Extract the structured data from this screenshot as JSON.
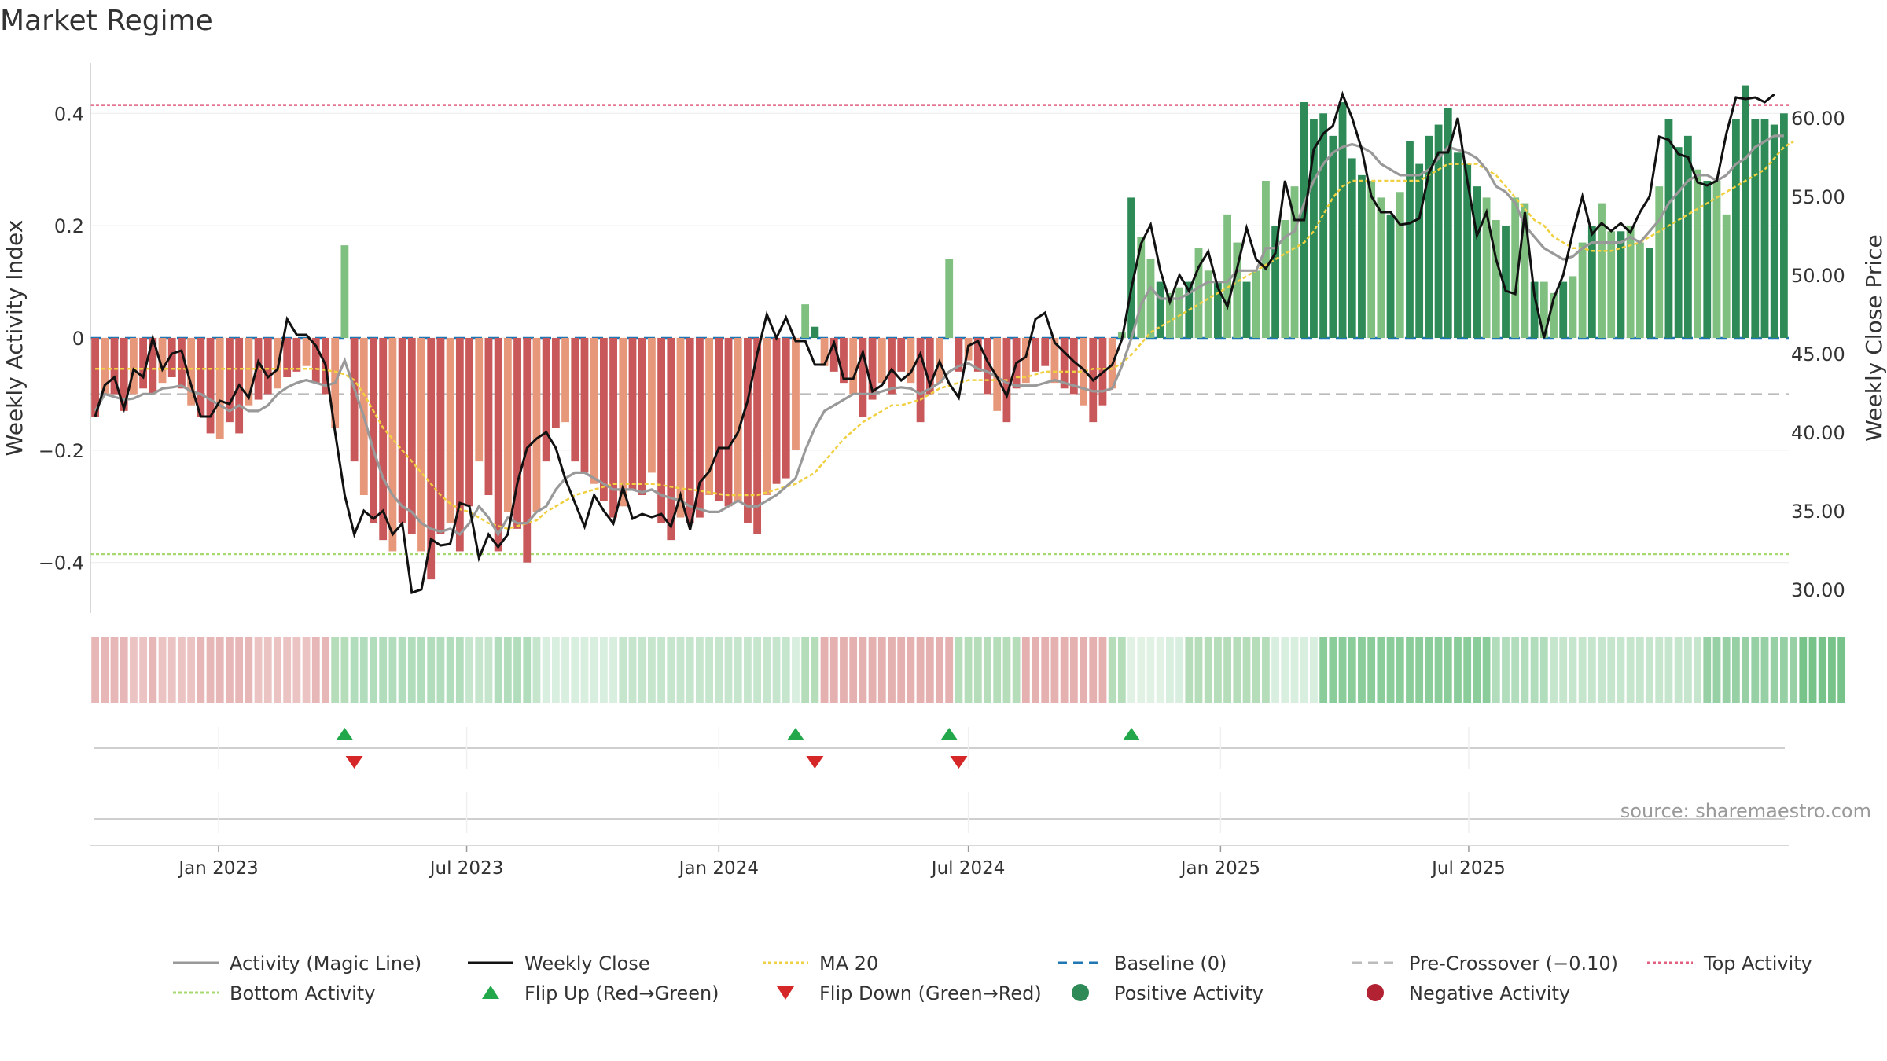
{
  "title": "Market Regime",
  "source": "source: sharemaestro.com",
  "colors": {
    "red_dark": "#c9585a",
    "red_light": "#e7977a",
    "green_dark": "#2e8b57",
    "green_light": "#7fbf7f",
    "magic_line": "#999999",
    "close": "#111111",
    "ma20": "#f0d040",
    "baseline": "#1f77b4",
    "pre_crossover": "#bbbbbb",
    "top": "#e06080",
    "bottom": "#a8d870",
    "flip_up": "#22a84a",
    "flip_down": "#d62728"
  },
  "legend": [
    {
      "label": "Activity (Magic Line)",
      "kind": "line",
      "color": "#999999",
      "dash": ""
    },
    {
      "label": "Weekly Close",
      "kind": "line",
      "color": "#111111",
      "dash": ""
    },
    {
      "label": "MA 20",
      "kind": "line",
      "color": "#f0d040",
      "dash": "4 3"
    },
    {
      "label": "Baseline (0)",
      "kind": "line",
      "color": "#1f77b4",
      "dash": "12 8"
    },
    {
      "label": "Pre-Crossover (−0.10)",
      "kind": "line",
      "color": "#bbbbbb",
      "dash": "12 8"
    },
    {
      "label": "Top Activity",
      "kind": "line",
      "color": "#e06080",
      "dash": "4 3"
    },
    {
      "label": "Bottom Activity",
      "kind": "line",
      "color": "#a8d870",
      "dash": "4 3"
    },
    {
      "label": "Flip Up (Red→Green)",
      "kind": "tri-up",
      "color": "#22a84a"
    },
    {
      "label": "Flip Down (Green→Red)",
      "kind": "tri-down",
      "color": "#d62728"
    },
    {
      "label": "Positive Activity",
      "kind": "dot",
      "color": "#2e8b57"
    },
    {
      "label": "Negative Activity",
      "kind": "dot",
      "color": "#b22233"
    }
  ],
  "chart_data": {
    "type": "bar",
    "x_start": "2022-10-03",
    "x_step": "weekly",
    "x_ticks": [
      {
        "date": "2023-01-01",
        "label": "Jan 2023"
      },
      {
        "date": "2023-07-01",
        "label": "Jul 2023"
      },
      {
        "date": "2024-01-01",
        "label": "Jan 2024"
      },
      {
        "date": "2024-07-01",
        "label": "Jul 2024"
      },
      {
        "date": "2025-01-01",
        "label": "Jan 2025"
      },
      {
        "date": "2025-07-01",
        "label": "Jul 2025"
      }
    ],
    "ylabel_left": "Weekly Activity Index",
    "ylabel_right": "Weekly Close Price",
    "ylim_left": [
      -0.49,
      0.49
    ],
    "ylim_right": [
      28.5,
      63.5
    ],
    "yticks_left": [
      {
        "v": 0.4,
        "label": "0.4"
      },
      {
        "v": 0.2,
        "label": "0.2"
      },
      {
        "v": 0,
        "label": "0"
      },
      {
        "v": -0.2,
        "label": "−0.2"
      },
      {
        "v": -0.4,
        "label": "−0.4"
      }
    ],
    "yticks_right": [
      {
        "v": 60,
        "label": "60.00"
      },
      {
        "v": 55,
        "label": "55.00"
      },
      {
        "v": 50,
        "label": "50.00"
      },
      {
        "v": 45,
        "label": "45.00"
      },
      {
        "v": 40,
        "label": "40.00"
      },
      {
        "v": 35,
        "label": "35.00"
      },
      {
        "v": 30,
        "label": "30.00"
      }
    ],
    "reference_lines": {
      "baseline": 0,
      "pre_crossover": -0.1,
      "top": 0.415,
      "bottom": -0.385
    },
    "activity": [
      -0.14,
      -0.1,
      -0.1,
      -0.13,
      -0.1,
      -0.09,
      -0.1,
      -0.08,
      -0.07,
      -0.09,
      -0.12,
      -0.14,
      -0.17,
      -0.18,
      -0.15,
      -0.17,
      -0.12,
      -0.11,
      -0.1,
      -0.09,
      -0.07,
      -0.06,
      -0.05,
      -0.08,
      -0.1,
      -0.16,
      0.165,
      -0.22,
      -0.28,
      -0.33,
      -0.36,
      -0.38,
      -0.33,
      -0.35,
      -0.38,
      -0.43,
      -0.35,
      -0.33,
      -0.38,
      -0.3,
      -0.22,
      -0.28,
      -0.38,
      -0.31,
      -0.34,
      -0.4,
      -0.31,
      -0.22,
      -0.16,
      -0.15,
      -0.22,
      -0.24,
      -0.26,
      -0.29,
      -0.32,
      -0.3,
      -0.27,
      -0.28,
      -0.24,
      -0.33,
      -0.36,
      -0.32,
      -0.33,
      -0.32,
      -0.28,
      -0.29,
      -0.3,
      -0.29,
      -0.33,
      -0.35,
      -0.28,
      -0.26,
      -0.25,
      -0.2,
      0.06,
      0.02,
      -0.05,
      -0.06,
      -0.08,
      -0.1,
      -0.14,
      -0.11,
      -0.08,
      -0.1,
      -0.06,
      -0.08,
      -0.15,
      -0.1,
      -0.08,
      0.14,
      -0.06,
      -0.04,
      -0.06,
      -0.1,
      -0.13,
      -0.15,
      -0.09,
      -0.08,
      -0.06,
      -0.05,
      -0.08,
      -0.09,
      -0.1,
      -0.12,
      -0.15,
      -0.12,
      -0.09,
      0.01,
      0.25,
      0.18,
      0.14,
      0.1,
      0.08,
      0.09,
      0.1,
      0.16,
      0.12,
      0.1,
      0.22,
      0.17,
      0.1,
      0.12,
      0.28,
      0.2,
      0.21,
      0.27,
      0.42,
      0.39,
      0.4,
      0.36,
      0.42,
      0.32,
      0.29,
      0.28,
      0.25,
      0.22,
      0.26,
      0.35,
      0.31,
      0.36,
      0.38,
      0.41,
      0.33,
      0.31,
      0.27,
      0.25,
      0.21,
      0.2,
      0.25,
      0.24,
      0.1,
      0.1,
      0.08,
      0.1,
      0.11,
      0.17,
      0.2,
      0.24,
      0.19,
      0.19,
      0.2,
      0.17,
      0.16,
      0.27,
      0.39,
      0.34,
      0.36,
      0.3,
      0.28,
      0.28,
      0.22,
      0.39,
      0.45,
      0.39,
      0.39,
      0.38,
      0.4
    ],
    "close": [
      41,
      43,
      43.5,
      41.5,
      44,
      43.5,
      46,
      44,
      45,
      45.2,
      43,
      41,
      41,
      42,
      41.8,
      43,
      42.2,
      44.5,
      43.5,
      44,
      47.2,
      46.2,
      46.2,
      45.5,
      44.3,
      40,
      36,
      33.5,
      35,
      34.5,
      35,
      33.5,
      34.2,
      29.8,
      30,
      33.2,
      32.8,
      32.9,
      35.5,
      35.3,
      32,
      33.5,
      32.7,
      33.5,
      36.8,
      39,
      39.6,
      40,
      39,
      37,
      35.5,
      34,
      36,
      35,
      34.2,
      36.5,
      34.5,
      34.8,
      34.6,
      34.8,
      34,
      36,
      33.8,
      36.8,
      37.5,
      39,
      39,
      40,
      42,
      45,
      47.5,
      46,
      47.3,
      45.8,
      45.8,
      44.3,
      44.3,
      45.7,
      43.4,
      43.4,
      45.1,
      42.6,
      43,
      44,
      43.3,
      43.8,
      45,
      43,
      44.5,
      43.1,
      42.2,
      45.5,
      45.8,
      44.5,
      43.5,
      42.3,
      44.4,
      44.8,
      47.2,
      47.6,
      45.7,
      45.1,
      44.5,
      44,
      43.3,
      43.8,
      44.3,
      45.9,
      49.2,
      52,
      53.2,
      50.3,
      48.3,
      50,
      49,
      50.5,
      51.5,
      49.2,
      48,
      50.4,
      53,
      51,
      50.4,
      51.4,
      56,
      53.5,
      53.5,
      58,
      59,
      59.5,
      61.5,
      60,
      58,
      55,
      54,
      54,
      53.2,
      53.3,
      53.6,
      56.5,
      57.8,
      57.8,
      60,
      56,
      52.5,
      54,
      51,
      49,
      48.8,
      54,
      48.7,
      46,
      48.5,
      50,
      52.7,
      55,
      52.6,
      53.3,
      52.8,
      53.3,
      52.7,
      54,
      55,
      58.8,
      58.6,
      57.7,
      57.5,
      55.9,
      55.7,
      56,
      59,
      61.3,
      61.2,
      61.3,
      61,
      61.5
    ],
    "magic_line": [
      -0.13,
      -0.1,
      -0.105,
      -0.11,
      -0.108,
      -0.1,
      -0.1,
      -0.09,
      -0.088,
      -0.085,
      -0.095,
      -0.1,
      -0.11,
      -0.12,
      -0.13,
      -0.12,
      -0.13,
      -0.13,
      -0.12,
      -0.1,
      -0.088,
      -0.08,
      -0.075,
      -0.08,
      -0.085,
      -0.08,
      -0.04,
      -0.09,
      -0.14,
      -0.2,
      -0.25,
      -0.28,
      -0.3,
      -0.31,
      -0.33,
      -0.34,
      -0.345,
      -0.34,
      -0.35,
      -0.33,
      -0.3,
      -0.32,
      -0.35,
      -0.32,
      -0.33,
      -0.33,
      -0.31,
      -0.3,
      -0.27,
      -0.25,
      -0.24,
      -0.24,
      -0.25,
      -0.26,
      -0.27,
      -0.27,
      -0.27,
      -0.275,
      -0.27,
      -0.28,
      -0.285,
      -0.29,
      -0.3,
      -0.305,
      -0.31,
      -0.31,
      -0.3,
      -0.29,
      -0.3,
      -0.3,
      -0.29,
      -0.28,
      -0.265,
      -0.25,
      -0.2,
      -0.16,
      -0.13,
      -0.12,
      -0.11,
      -0.1,
      -0.1,
      -0.1,
      -0.095,
      -0.09,
      -0.088,
      -0.09,
      -0.1,
      -0.09,
      -0.08,
      -0.06,
      -0.05,
      -0.045,
      -0.055,
      -0.06,
      -0.07,
      -0.08,
      -0.085,
      -0.085,
      -0.085,
      -0.08,
      -0.075,
      -0.08,
      -0.085,
      -0.09,
      -0.095,
      -0.095,
      -0.09,
      -0.05,
      0,
      0.06,
      0.09,
      0.07,
      0.07,
      0.07,
      0.08,
      0.09,
      0.1,
      0.1,
      0.1,
      0.12,
      0.12,
      0.12,
      0.16,
      0.16,
      0.18,
      0.19,
      0.24,
      0.28,
      0.31,
      0.33,
      0.34,
      0.345,
      0.34,
      0.33,
      0.31,
      0.3,
      0.29,
      0.29,
      0.29,
      0.3,
      0.32,
      0.34,
      0.335,
      0.33,
      0.32,
      0.3,
      0.27,
      0.26,
      0.24,
      0.2,
      0.18,
      0.16,
      0.15,
      0.14,
      0.145,
      0.16,
      0.17,
      0.17,
      0.17,
      0.17,
      0.18,
      0.17,
      0.19,
      0.21,
      0.24,
      0.26,
      0.28,
      0.29,
      0.29,
      0.28,
      0.29,
      0.31,
      0.32,
      0.34,
      0.35,
      0.36,
      0.36
    ],
    "ma20": [
      -0.055,
      -0.055,
      -0.055,
      -0.055,
      -0.055,
      -0.055,
      -0.055,
      -0.055,
      -0.055,
      -0.055,
      -0.055,
      -0.055,
      -0.055,
      -0.055,
      -0.055,
      -0.055,
      -0.055,
      -0.055,
      -0.055,
      -0.055,
      -0.055,
      -0.055,
      -0.055,
      -0.055,
      -0.057,
      -0.06,
      -0.065,
      -0.075,
      -0.1,
      -0.13,
      -0.16,
      -0.18,
      -0.2,
      -0.22,
      -0.24,
      -0.26,
      -0.28,
      -0.295,
      -0.305,
      -0.31,
      -0.32,
      -0.33,
      -0.335,
      -0.34,
      -0.335,
      -0.33,
      -0.325,
      -0.31,
      -0.3,
      -0.29,
      -0.28,
      -0.275,
      -0.27,
      -0.265,
      -0.26,
      -0.26,
      -0.26,
      -0.26,
      -0.26,
      -0.262,
      -0.265,
      -0.268,
      -0.27,
      -0.272,
      -0.275,
      -0.278,
      -0.28,
      -0.28,
      -0.28,
      -0.28,
      -0.275,
      -0.27,
      -0.265,
      -0.26,
      -0.25,
      -0.24,
      -0.22,
      -0.2,
      -0.18,
      -0.165,
      -0.15,
      -0.14,
      -0.13,
      -0.12,
      -0.12,
      -0.115,
      -0.11,
      -0.1,
      -0.09,
      -0.085,
      -0.08,
      -0.075,
      -0.075,
      -0.075,
      -0.075,
      -0.075,
      -0.07,
      -0.07,
      -0.065,
      -0.06,
      -0.06,
      -0.06,
      -0.06,
      -0.06,
      -0.055,
      -0.055,
      -0.055,
      -0.045,
      -0.03,
      -0.01,
      0.01,
      0.02,
      0.03,
      0.04,
      0.05,
      0.06,
      0.07,
      0.08,
      0.09,
      0.1,
      0.11,
      0.12,
      0.13,
      0.14,
      0.15,
      0.16,
      0.17,
      0.19,
      0.22,
      0.25,
      0.27,
      0.28,
      0.28,
      0.28,
      0.28,
      0.28,
      0.28,
      0.28,
      0.28,
      0.29,
      0.3,
      0.31,
      0.31,
      0.31,
      0.31,
      0.3,
      0.29,
      0.27,
      0.25,
      0.23,
      0.21,
      0.2,
      0.18,
      0.17,
      0.16,
      0.16,
      0.155,
      0.155,
      0.155,
      0.16,
      0.165,
      0.17,
      0.18,
      0.19,
      0.2,
      0.21,
      0.22,
      0.23,
      0.24,
      0.25,
      0.26,
      0.27,
      0.28,
      0.29,
      0.3,
      0.32,
      0.34,
      0.35
    ],
    "flip_up_weeks": [
      26,
      73,
      89,
      108
    ],
    "flip_down_weeks": [
      27,
      75,
      90
    ],
    "regime_strip": [
      0.3,
      0.3,
      0.3,
      0.3,
      0.2,
      0.2,
      0.3,
      0.2,
      0.2,
      0.2,
      0.2,
      0.3,
      0.3,
      0.3,
      0.3,
      0.3,
      0.3,
      0.2,
      0.2,
      0.2,
      0.2,
      0.2,
      0.2,
      0.3,
      0.3,
      0.4,
      0.5,
      0.8,
      0.8,
      0.8,
      0.8,
      0.8,
      0.8,
      0.8,
      0.8,
      0.8,
      0.8,
      0.8,
      0.8,
      0.7,
      0.7,
      0.7,
      0.8,
      0.8,
      0.8,
      0.8,
      0.7,
      0.6,
      0.6,
      0.6,
      0.6,
      0.6,
      0.6,
      0.6,
      0.6,
      0.7,
      0.7,
      0.7,
      0.7,
      0.7,
      0.7,
      0.7,
      0.7,
      0.7,
      0.7,
      0.7,
      0.7,
      0.7,
      0.7,
      0.7,
      0.7,
      0.7,
      0.7,
      0.6,
      0.25,
      0.25,
      0.35,
      0.35,
      0.35,
      0.35,
      0.35,
      0.35,
      0.35,
      0.35,
      0.35,
      0.35,
      0.35,
      0.35,
      0.35,
      0.35,
      0.25,
      0.25,
      0.25,
      0.25,
      0.25,
      0.25,
      0.25,
      0.35,
      0.35,
      0.35,
      0.35,
      0.35,
      0.35,
      0.35,
      0.35,
      0.35,
      0.4,
      0.4,
      0.55,
      0.55,
      0.55,
      0.55,
      0.6,
      0.6,
      0.5,
      0.5,
      0.5,
      0.5,
      0.5,
      0.5,
      0.5,
      0.5,
      0.5,
      0.6,
      0.6,
      0.6,
      0.6,
      0.6,
      1,
      1,
      1,
      1,
      1,
      1,
      1,
      1,
      1,
      1,
      1,
      1,
      1,
      1,
      1,
      1,
      1,
      1,
      0.8,
      0.8,
      0.8,
      0.8,
      0.8,
      0.8,
      0.7,
      0.7,
      0.7,
      0.7,
      0.7,
      0.7,
      0.7,
      0.7,
      0.7,
      0.7,
      0.7,
      0.7,
      0.7,
      0.7,
      0.7,
      0.7,
      0.95,
      0.95,
      0.95,
      0.95,
      0.95,
      0.95,
      0.95,
      0.95,
      0.95,
      0.95,
      1.1,
      1.1,
      1.1,
      1.1,
      1.1
    ]
  }
}
